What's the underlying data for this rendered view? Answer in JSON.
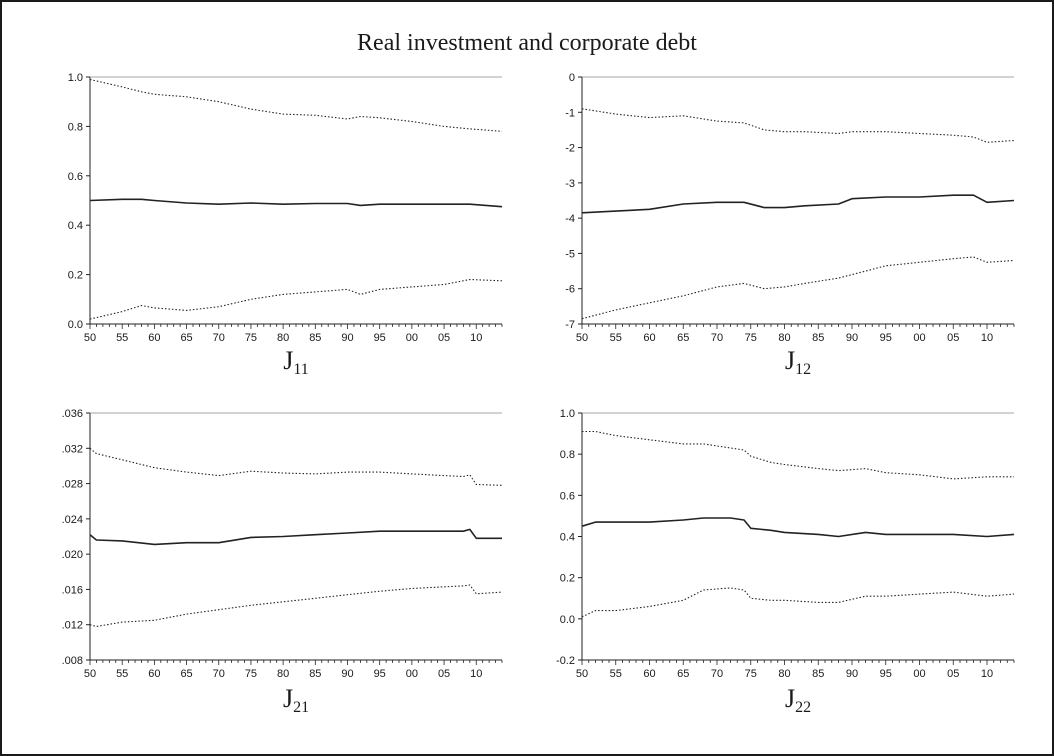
{
  "title": "Real investment and corporate debt",
  "chart_data": [
    {
      "type": "line",
      "panel_label": {
        "main": "J",
        "sub": "11"
      },
      "x": [
        1950,
        1955,
        1958,
        1960,
        1965,
        1970,
        1975,
        1980,
        1985,
        1990,
        1992,
        1995,
        2000,
        2005,
        2009,
        2014
      ],
      "xticks": [
        "50",
        "55",
        "60",
        "65",
        "70",
        "75",
        "80",
        "85",
        "90",
        "95",
        "00",
        "05",
        "10"
      ],
      "yticks": [
        "0.0",
        "0.2",
        "0.4",
        "0.6",
        "0.8",
        "1.0"
      ],
      "ylim": [
        0.0,
        1.0
      ],
      "series": [
        {
          "style": "solid",
          "values": [
            0.5,
            0.505,
            0.505,
            0.5,
            0.49,
            0.485,
            0.49,
            0.485,
            0.488,
            0.488,
            0.48,
            0.485,
            0.485,
            0.485,
            0.485,
            0.475
          ]
        },
        {
          "style": "dotted",
          "values": [
            0.99,
            0.96,
            0.94,
            0.93,
            0.92,
            0.9,
            0.87,
            0.85,
            0.845,
            0.83,
            0.84,
            0.835,
            0.82,
            0.8,
            0.79,
            0.78
          ]
        },
        {
          "style": "dotted",
          "values": [
            0.02,
            0.05,
            0.075,
            0.065,
            0.055,
            0.07,
            0.1,
            0.12,
            0.13,
            0.14,
            0.12,
            0.14,
            0.15,
            0.16,
            0.18,
            0.175
          ]
        }
      ]
    },
    {
      "type": "line",
      "panel_label": {
        "main": "J",
        "sub": "12"
      },
      "x": [
        1950,
        1955,
        1960,
        1965,
        1970,
        1974,
        1977,
        1980,
        1983,
        1988,
        1990,
        1995,
        2000,
        2005,
        2008,
        2010,
        2014
      ],
      "xticks": [
        "50",
        "55",
        "60",
        "65",
        "70",
        "75",
        "80",
        "85",
        "90",
        "95",
        "00",
        "05",
        "10"
      ],
      "yticks": [
        "-7",
        "-6",
        "-5",
        "-4",
        "-3",
        "-2",
        "-1",
        "0"
      ],
      "ylim": [
        -7,
        0
      ],
      "series": [
        {
          "style": "solid",
          "values": [
            -3.85,
            -3.8,
            -3.75,
            -3.6,
            -3.55,
            -3.55,
            -3.7,
            -3.7,
            -3.65,
            -3.6,
            -3.45,
            -3.4,
            -3.4,
            -3.35,
            -3.35,
            -3.55,
            -3.5
          ]
        },
        {
          "style": "dotted",
          "values": [
            -0.9,
            -1.05,
            -1.15,
            -1.1,
            -1.25,
            -1.3,
            -1.5,
            -1.55,
            -1.55,
            -1.6,
            -1.55,
            -1.55,
            -1.6,
            -1.65,
            -1.7,
            -1.85,
            -1.8
          ]
        },
        {
          "style": "dotted",
          "values": [
            -6.85,
            -6.6,
            -6.4,
            -6.2,
            -5.95,
            -5.85,
            -6.0,
            -5.95,
            -5.85,
            -5.7,
            -5.6,
            -5.35,
            -5.25,
            -5.15,
            -5.1,
            -5.25,
            -5.2
          ]
        }
      ]
    },
    {
      "type": "line",
      "panel_label": {
        "main": "J",
        "sub": "21"
      },
      "x": [
        1950,
        1951,
        1955,
        1960,
        1965,
        1970,
        1975,
        1980,
        1985,
        1990,
        1995,
        2000,
        2005,
        2008,
        2009,
        2010,
        2014
      ],
      "xticks": [
        "50",
        "55",
        "60",
        "65",
        "70",
        "75",
        "80",
        "85",
        "90",
        "95",
        "00",
        "05",
        "10"
      ],
      "yticks": [
        ".008",
        ".012",
        ".016",
        ".020",
        ".024",
        ".028",
        ".032",
        ".036"
      ],
      "ylim": [
        0.008,
        0.036
      ],
      "series": [
        {
          "style": "solid",
          "values": [
            0.0222,
            0.0216,
            0.0215,
            0.0211,
            0.0213,
            0.0213,
            0.0219,
            0.022,
            0.0222,
            0.0224,
            0.0226,
            0.0226,
            0.0226,
            0.0226,
            0.0228,
            0.0218,
            0.0218
          ]
        },
        {
          "style": "dotted",
          "values": [
            0.032,
            0.0314,
            0.0307,
            0.0298,
            0.0293,
            0.0289,
            0.0294,
            0.0292,
            0.0291,
            0.0293,
            0.0293,
            0.0291,
            0.0289,
            0.0288,
            0.029,
            0.0279,
            0.0278
          ]
        },
        {
          "style": "dotted",
          "values": [
            0.012,
            0.0118,
            0.0123,
            0.0125,
            0.0132,
            0.0137,
            0.0142,
            0.0146,
            0.015,
            0.0154,
            0.0158,
            0.0161,
            0.0163,
            0.0164,
            0.0165,
            0.0155,
            0.0157
          ]
        }
      ]
    },
    {
      "type": "line",
      "panel_label": {
        "main": "J",
        "sub": "22"
      },
      "x": [
        1950,
        1952,
        1955,
        1960,
        1965,
        1968,
        1972,
        1974,
        1975,
        1978,
        1980,
        1985,
        1988,
        1992,
        1995,
        2000,
        2005,
        2010,
        2014
      ],
      "xticks": [
        "50",
        "55",
        "60",
        "65",
        "70",
        "75",
        "80",
        "85",
        "90",
        "95",
        "00",
        "05",
        "10"
      ],
      "yticks": [
        "-0.2",
        "0.0",
        "0.2",
        "0.4",
        "0.6",
        "0.8",
        "1.0"
      ],
      "ylim": [
        -0.2,
        1.0
      ],
      "series": [
        {
          "style": "solid",
          "values": [
            0.45,
            0.47,
            0.47,
            0.47,
            0.48,
            0.49,
            0.49,
            0.48,
            0.44,
            0.43,
            0.42,
            0.41,
            0.4,
            0.42,
            0.41,
            0.41,
            0.41,
            0.4,
            0.41
          ]
        },
        {
          "style": "dotted",
          "values": [
            0.91,
            0.91,
            0.89,
            0.87,
            0.85,
            0.85,
            0.83,
            0.82,
            0.79,
            0.76,
            0.75,
            0.73,
            0.72,
            0.73,
            0.71,
            0.7,
            0.68,
            0.69,
            0.69
          ]
        },
        {
          "style": "dotted",
          "values": [
            0.01,
            0.04,
            0.04,
            0.06,
            0.09,
            0.14,
            0.15,
            0.14,
            0.1,
            0.09,
            0.09,
            0.08,
            0.08,
            0.11,
            0.11,
            0.12,
            0.13,
            0.11,
            0.12
          ]
        }
      ]
    }
  ]
}
